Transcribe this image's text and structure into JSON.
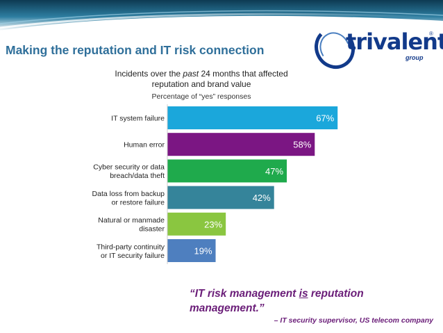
{
  "slide": {
    "title": "Making the reputation and IT risk connection"
  },
  "logo": {
    "text": "trivalent",
    "sub": "group",
    "registered": "®"
  },
  "chart_data": {
    "type": "bar",
    "orientation": "horizontal",
    "title_pre": "Incidents over the ",
    "title_em": "past",
    "title_post": " 24 months that affected reputation and brand value",
    "subtitle": "Percentage of “yes” responses",
    "categories": [
      [
        "IT system failure"
      ],
      [
        "Human error"
      ],
      [
        "Cyber security or data",
        "breach/data theft"
      ],
      [
        "Data loss from backup",
        "or restore failure"
      ],
      [
        "Natural or manmade",
        "disaster"
      ],
      [
        "Third-party continuity",
        "or IT security failure"
      ]
    ],
    "values": [
      67,
      58,
      47,
      42,
      23,
      19
    ],
    "value_labels": [
      "67%",
      "58%",
      "47%",
      "42%",
      "23%",
      "19%"
    ],
    "colors": [
      "#1ba7db",
      "#7b1683",
      "#1faa4c",
      "#35849a",
      "#8ac640",
      "#4e7fbf"
    ],
    "xlim": [
      0,
      100
    ],
    "grid": false,
    "legend": "none"
  },
  "quote": {
    "before": "“IT risk management ",
    "underlined": "is",
    "after": " reputation management.”",
    "attribution": "– IT security supervisor, US telecom company"
  }
}
